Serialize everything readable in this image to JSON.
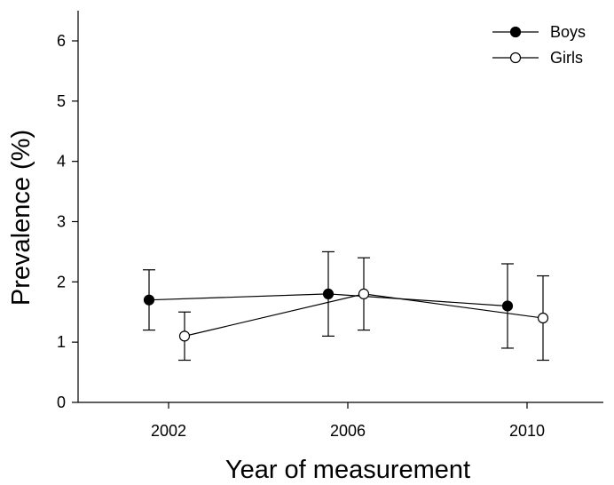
{
  "chart_data": {
    "type": "line",
    "title": "",
    "xlabel": "Year of measurement",
    "ylabel": "Prevalence (%)",
    "x": [
      2002,
      2006,
      2010
    ],
    "x_tick_labels": [
      "2002",
      "2006",
      "2010"
    ],
    "y_ticks": [
      0,
      1,
      2,
      3,
      4,
      5,
      6
    ],
    "ylim": [
      0,
      6.5
    ],
    "grid": false,
    "legend_position": "top-right",
    "series": [
      {
        "name": "Boys",
        "marker": "filled-circle",
        "color": "#000000",
        "values": [
          1.7,
          1.8,
          1.6
        ],
        "error_low": [
          1.2,
          1.1,
          0.9
        ],
        "error_high": [
          2.2,
          2.5,
          2.3
        ]
      },
      {
        "name": "Girls",
        "marker": "open-circle",
        "color": "#000000",
        "values": [
          1.1,
          1.8,
          1.4
        ],
        "error_low": [
          0.7,
          1.2,
          0.7
        ],
        "error_high": [
          1.5,
          2.4,
          2.1
        ]
      }
    ]
  }
}
